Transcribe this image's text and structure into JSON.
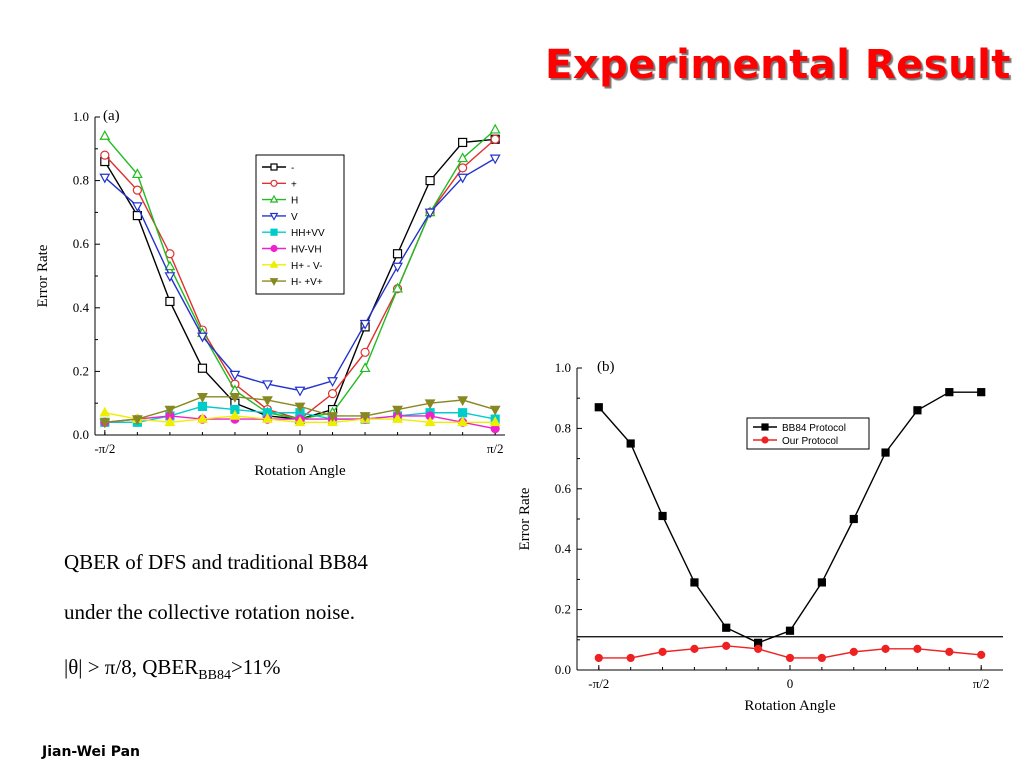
{
  "slide": {
    "title": "Experimental Result",
    "caption_line1": "QBER of DFS and traditional BB84",
    "caption_line2": "under  the collective rotation noise.",
    "caption_line3_prefix": "|θ| > π/8,   QBER",
    "caption_line3_sub": "BB84",
    "caption_line3_suffix": ">11%",
    "author": "Jian-Wei Pan"
  },
  "chart_data": [
    {
      "type": "line",
      "panel_label": "(a)",
      "xlabel": "Rotation Angle",
      "ylabel": "Error Rate",
      "xlim": [
        -1.65,
        1.65
      ],
      "ylim": [
        0,
        1.0
      ],
      "yticks": [
        "0.0",
        "0.2",
        "0.4",
        "0.6",
        "0.8",
        "1.0"
      ],
      "xticks": [
        "-π/2",
        "0",
        "π/2"
      ],
      "legend_position": "center",
      "x": [
        -1.571,
        -1.309,
        -1.047,
        -0.785,
        -0.524,
        -0.262,
        0,
        0.262,
        0.524,
        0.785,
        1.047,
        1.309,
        1.571
      ],
      "series": [
        {
          "name": "-",
          "color": "#000000",
          "marker": "square-open",
          "values": [
            0.86,
            0.69,
            0.42,
            0.21,
            0.1,
            0.06,
            0.05,
            0.08,
            0.34,
            0.57,
            0.8,
            0.92,
            0.93
          ]
        },
        {
          "name": "+",
          "color": "#e03030",
          "marker": "circle-open",
          "values": [
            0.88,
            0.77,
            0.57,
            0.33,
            0.16,
            0.08,
            0.05,
            0.13,
            0.26,
            0.46,
            0.7,
            0.84,
            0.93
          ]
        },
        {
          "name": "H",
          "color": "#22bb22",
          "marker": "triangle-up-open",
          "values": [
            0.94,
            0.82,
            0.53,
            0.32,
            0.14,
            0.07,
            0.05,
            0.07,
            0.21,
            0.46,
            0.7,
            0.87,
            0.96
          ]
        },
        {
          "name": "V",
          "color": "#2233cc",
          "marker": "triangle-down-open",
          "values": [
            0.81,
            0.72,
            0.5,
            0.31,
            0.19,
            0.16,
            0.14,
            0.17,
            0.35,
            0.53,
            0.7,
            0.81,
            0.87
          ]
        },
        {
          "name": "HH+VV",
          "color": "#00cccc",
          "marker": "square",
          "values": [
            0.04,
            0.04,
            0.06,
            0.09,
            0.08,
            0.07,
            0.07,
            0.05,
            0.05,
            0.06,
            0.07,
            0.07,
            0.05
          ]
        },
        {
          "name": "HV-VH",
          "color": "#ee22cc",
          "marker": "circle",
          "values": [
            0.04,
            0.05,
            0.06,
            0.05,
            0.05,
            0.05,
            0.05,
            0.05,
            0.05,
            0.06,
            0.06,
            0.04,
            0.02
          ]
        },
        {
          "name": "H+ - V-",
          "color": "#eeee00",
          "marker": "triangle-up",
          "values": [
            0.07,
            0.05,
            0.04,
            0.05,
            0.06,
            0.05,
            0.04,
            0.04,
            0.05,
            0.05,
            0.04,
            0.04,
            0.04
          ]
        },
        {
          "name": "H- +V+",
          "color": "#888822",
          "marker": "triangle-down",
          "values": [
            0.04,
            0.05,
            0.08,
            0.12,
            0.12,
            0.11,
            0.09,
            0.06,
            0.06,
            0.08,
            0.1,
            0.11,
            0.08
          ]
        }
      ]
    },
    {
      "type": "line",
      "panel_label": "(b)",
      "xlabel": "Rotation Angle",
      "ylabel": "Error Rate",
      "xlim": [
        -1.75,
        1.75
      ],
      "ylim": [
        0,
        1.0
      ],
      "yticks": [
        "0.0",
        "0.2",
        "0.4",
        "0.6",
        "0.8",
        "1.0"
      ],
      "xticks": [
        "-π/2",
        "0",
        "π/2"
      ],
      "legend_position": "right",
      "threshold": 0.11,
      "x": [
        -1.571,
        -1.309,
        -1.047,
        -0.785,
        -0.524,
        -0.262,
        0,
        0.262,
        0.524,
        0.785,
        1.047,
        1.309,
        1.571
      ],
      "series": [
        {
          "name": "BB84 Protocol",
          "color": "#000000",
          "marker": "square",
          "values": [
            0.87,
            0.75,
            0.51,
            0.29,
            0.14,
            0.09,
            0.13,
            0.29,
            0.5,
            0.72,
            0.86,
            0.92,
            0.92
          ]
        },
        {
          "name": "Our Protocol",
          "color": "#ee2222",
          "marker": "circle",
          "values": [
            0.04,
            0.04,
            0.06,
            0.07,
            0.08,
            0.07,
            0.04,
            0.04,
            0.06,
            0.07,
            0.07,
            0.06,
            0.05
          ]
        }
      ]
    }
  ]
}
